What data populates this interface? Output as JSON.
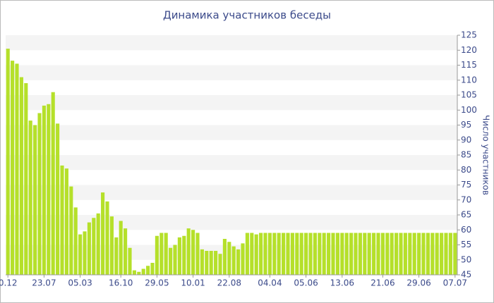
{
  "chart_data": {
    "type": "bar",
    "title": "Динамика участников беседы",
    "y_axis_label": "Число участников",
    "categories": [
      "0.12",
      null,
      null,
      null,
      null,
      null,
      null,
      null,
      "23.07",
      null,
      null,
      null,
      null,
      null,
      null,
      null,
      "05.03",
      null,
      null,
      null,
      null,
      null,
      null,
      null,
      null,
      "16.10",
      null,
      null,
      null,
      null,
      null,
      null,
      null,
      "29.05",
      null,
      null,
      null,
      null,
      null,
      null,
      null,
      "10.01",
      null,
      null,
      null,
      null,
      null,
      null,
      null,
      "22.08",
      null,
      null,
      null,
      null,
      null,
      null,
      null,
      null,
      "04.04",
      null,
      null,
      null,
      null,
      null,
      null,
      null,
      "05.06",
      null,
      null,
      null,
      null,
      null,
      null,
      null,
      "13.06",
      null,
      null,
      null,
      null,
      null,
      null,
      null,
      null,
      "21.06",
      null,
      null,
      null,
      null,
      null,
      null,
      null,
      "29.06",
      null,
      null,
      null,
      null,
      null,
      null,
      null,
      "07.07"
    ],
    "values": [
      120.5,
      116.5,
      115.5,
      111,
      109,
      96.5,
      95,
      99,
      101.5,
      102,
      106,
      95.5,
      81.5,
      80.5,
      74.5,
      67.5,
      58.5,
      59.5,
      62.5,
      64,
      65.5,
      72.5,
      69.5,
      64.5,
      57.5,
      63,
      60.5,
      54,
      46.5,
      46,
      47,
      48,
      49,
      58,
      59,
      59,
      54,
      55,
      57.5,
      58,
      60.5,
      60,
      59,
      53.5,
      53,
      53,
      53,
      52,
      57,
      56,
      54.5,
      53.5,
      55.5,
      59,
      59,
      58.5,
      59,
      59,
      59,
      59,
      59,
      59,
      59,
      59,
      59,
      59,
      59,
      59,
      59,
      59,
      59,
      59,
      59,
      59,
      59,
      59,
      59,
      59,
      59,
      59,
      59,
      59,
      59,
      59,
      59,
      59,
      59,
      59,
      59,
      59,
      59,
      59,
      59,
      59,
      59,
      59,
      59,
      59,
      59,
      59
    ],
    "color": "#b5e02a",
    "ylim": [
      45,
      125
    ],
    "yticks": [
      45,
      50,
      55,
      60,
      65,
      70,
      75,
      80,
      85,
      90,
      95,
      100,
      105,
      110,
      115,
      120,
      125
    ],
    "grid": true,
    "y_axis_side": "right"
  }
}
